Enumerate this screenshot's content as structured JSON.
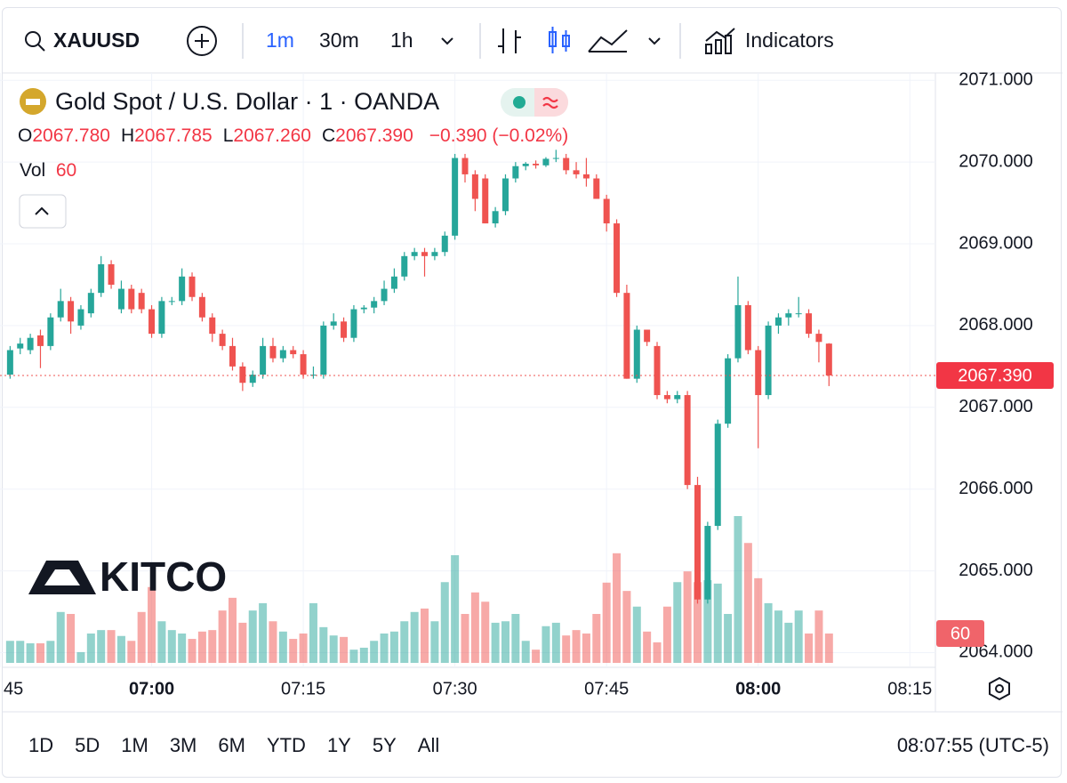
{
  "toolbar": {
    "symbol": "XAUUSD",
    "intervals": [
      "1m",
      "30m",
      "1h"
    ],
    "indicators": "Indicators"
  },
  "legend": {
    "title": "Gold Spot / U.S. Dollar · 1 · OANDA",
    "ohlc": [
      {
        "key": "O",
        "value": "2067.780"
      },
      {
        "key": "H",
        "value": "2067.785"
      },
      {
        "key": "L",
        "value": "2067.260"
      },
      {
        "key": "C",
        "value": "2067.390"
      }
    ],
    "change": "−0.390 (−0.02%)",
    "volume_label": "Vol",
    "volume_value": "60"
  },
  "watermark": "KITCO",
  "chart_data": {
    "type": "candlestick",
    "x": [
      "06:46",
      "06:47",
      "06:48",
      "06:49",
      "06:50",
      "06:51",
      "06:52",
      "06:53",
      "06:54",
      "06:55",
      "06:56",
      "06:57",
      "06:58",
      "06:59",
      "07:00",
      "07:01",
      "07:02",
      "07:03",
      "07:04",
      "07:05",
      "07:06",
      "07:07",
      "07:08",
      "07:09",
      "07:10",
      "07:11",
      "07:12",
      "07:13",
      "07:14",
      "07:15",
      "07:16",
      "07:17",
      "07:18",
      "07:19",
      "07:20",
      "07:21",
      "07:22",
      "07:23",
      "07:24",
      "07:25",
      "07:26",
      "07:27",
      "07:28",
      "07:29",
      "07:30",
      "07:31",
      "07:32",
      "07:33",
      "07:34",
      "07:35",
      "07:36",
      "07:37",
      "07:38",
      "07:39",
      "07:40",
      "07:41",
      "07:42",
      "07:43",
      "07:44",
      "07:45",
      "07:46",
      "07:47",
      "07:48",
      "07:49",
      "07:50",
      "07:51",
      "07:52",
      "07:53",
      "07:54",
      "07:55",
      "07:56",
      "07:57",
      "07:58",
      "07:59",
      "08:00",
      "08:01",
      "08:02",
      "08:03",
      "08:04",
      "08:05",
      "08:06",
      "08:07"
    ],
    "open": [
      2067.4,
      2067.72,
      2067.7,
      2067.88,
      2067.75,
      2068.1,
      2068.3,
      2068.0,
      2068.15,
      2068.4,
      2068.75,
      2068.2,
      2068.45,
      2068.4,
      2068.2,
      2067.9,
      2068.3,
      2068.3,
      2068.6,
      2068.35,
      2068.1,
      2067.9,
      2067.75,
      2067.5,
      2067.3,
      2067.4,
      2067.75,
      2067.6,
      2067.7,
      2067.65,
      2067.4,
      2067.4,
      2068.0,
      2068.05,
      2067.85,
      2068.2,
      2068.22,
      2068.3,
      2068.45,
      2068.6,
      2068.85,
      2068.9,
      2068.85,
      2068.9,
      2069.1,
      2070.05,
      2069.85,
      2069.8,
      2069.25,
      2069.4,
      2069.8,
      2069.95,
      2069.98,
      2069.96,
      2070.04,
      2070.05,
      2069.9,
      2069.85,
      2069.8,
      2069.55,
      2069.25,
      2068.4,
      2067.35,
      2067.95,
      2067.75,
      2067.15,
      2067.1,
      2067.15,
      2066.05,
      2064.65,
      2065.55,
      2066.8,
      2067.6,
      2068.25,
      2067.7,
      2067.15,
      2068.0,
      2068.1,
      2068.15,
      2068.15,
      2067.9,
      2067.78
    ],
    "high": [
      2067.75,
      2067.85,
      2067.9,
      2067.95,
      2068.15,
      2068.45,
      2068.35,
      2068.25,
      2068.45,
      2068.85,
      2068.8,
      2068.55,
      2068.5,
      2068.45,
      2068.25,
      2068.35,
      2068.35,
      2068.7,
      2068.65,
      2068.4,
      2068.15,
      2067.95,
      2067.85,
      2067.55,
      2067.45,
      2067.85,
      2067.85,
      2067.75,
      2067.75,
      2067.7,
      2067.5,
      2068.05,
      2068.15,
      2068.1,
      2068.25,
      2068.25,
      2068.35,
      2068.55,
      2068.7,
      2068.9,
      2068.95,
      2068.95,
      2068.95,
      2069.15,
      2070.1,
      2070.1,
      2069.9,
      2069.85,
      2069.45,
      2069.85,
      2070.0,
      2070.0,
      2070.02,
      2070.06,
      2070.15,
      2070.1,
      2070.0,
      2070.05,
      2069.85,
      2069.6,
      2069.3,
      2068.5,
      2068.0,
      2067.95,
      2067.8,
      2067.2,
      2067.2,
      2067.2,
      2066.15,
      2065.6,
      2066.85,
      2067.65,
      2068.6,
      2068.3,
      2067.75,
      2068.05,
      2068.15,
      2068.2,
      2068.35,
      2068.2,
      2067.95,
      2067.785
    ],
    "low": [
      2067.35,
      2067.65,
      2067.65,
      2067.48,
      2067.7,
      2068.05,
      2067.9,
      2067.95,
      2068.1,
      2068.35,
      2068.45,
      2068.15,
      2068.15,
      2068.15,
      2067.85,
      2067.85,
      2068.25,
      2068.25,
      2068.3,
      2068.05,
      2067.8,
      2067.7,
      2067.45,
      2067.2,
      2067.25,
      2067.35,
      2067.55,
      2067.55,
      2067.6,
      2067.35,
      2067.35,
      2067.35,
      2067.95,
      2067.8,
      2067.8,
      2068.15,
      2068.15,
      2068.25,
      2068.4,
      2068.55,
      2068.8,
      2068.6,
      2068.8,
      2068.85,
      2069.05,
      2069.75,
      2069.4,
      2069.25,
      2069.2,
      2069.35,
      2069.75,
      2069.9,
      2069.92,
      2069.94,
      2070.0,
      2069.85,
      2069.8,
      2069.7,
      2069.55,
      2069.15,
      2068.35,
      2067.35,
      2067.3,
      2067.75,
      2067.1,
      2067.05,
      2067.05,
      2066.0,
      2064.6,
      2064.6,
      2065.5,
      2066.75,
      2067.55,
      2067.65,
      2066.5,
      2067.1,
      2067.9,
      2068.0,
      2068.1,
      2067.85,
      2067.55,
      2067.26
    ],
    "close": [
      2067.7,
      2067.78,
      2067.85,
      2067.75,
      2068.1,
      2068.3,
      2068.05,
      2068.2,
      2068.4,
      2068.75,
      2068.5,
      2068.45,
      2068.2,
      2068.2,
      2067.9,
      2068.3,
      2068.3,
      2068.6,
      2068.35,
      2068.1,
      2067.9,
      2067.75,
      2067.5,
      2067.3,
      2067.4,
      2067.75,
      2067.6,
      2067.7,
      2067.65,
      2067.4,
      2067.4,
      2068.0,
      2068.05,
      2067.85,
      2068.2,
      2068.22,
      2068.3,
      2068.45,
      2068.6,
      2068.85,
      2068.9,
      2068.85,
      2068.9,
      2069.1,
      2070.05,
      2069.85,
      2069.55,
      2069.25,
      2069.4,
      2069.8,
      2069.95,
      2069.98,
      2069.96,
      2070.04,
      2070.05,
      2069.9,
      2069.85,
      2069.8,
      2069.55,
      2069.25,
      2068.4,
      2067.35,
      2067.95,
      2067.8,
      2067.15,
      2067.1,
      2067.15,
      2066.05,
      2064.65,
      2065.55,
      2066.8,
      2067.6,
      2068.25,
      2067.7,
      2067.15,
      2068.0,
      2068.1,
      2068.15,
      2068.15,
      2067.9,
      2067.8,
      2067.39
    ],
    "volume": [
      45,
      45,
      40,
      40,
      45,
      104,
      100,
      22,
      60,
      67,
      67,
      55,
      45,
      104,
      155,
      85,
      67,
      60,
      49,
      64,
      67,
      107,
      133,
      82,
      107,
      122,
      85,
      64,
      49,
      60,
      122,
      73,
      56,
      53,
      27,
      31,
      45,
      60,
      64,
      85,
      104,
      111,
      85,
      165,
      220,
      100,
      144,
      125,
      82,
      85,
      100,
      45,
      27,
      75,
      82,
      56,
      67,
      60,
      100,
      164,
      224,
      147,
      115,
      64,
      42,
      115,
      165,
      187,
      165,
      169,
      162,
      100,
      300,
      245,
      173,
      122,
      107,
      82,
      107,
      60,
      107,
      60
    ],
    "up_color": "#26a69a",
    "down_color": "#ef5350",
    "ylim": [
      2063.82,
      2071.09
    ],
    "yticks": [
      {
        "value": 2064,
        "label": "2064.000"
      },
      {
        "value": 2065,
        "label": "2065.000"
      },
      {
        "value": 2066,
        "label": "2066.000"
      },
      {
        "value": 2067,
        "label": "2067.000"
      },
      {
        "value": 2068,
        "label": "2068.000"
      },
      {
        "value": 2069,
        "label": "2069.000"
      },
      {
        "value": 2070,
        "label": "2070.000"
      },
      {
        "value": 2071,
        "label": "2071.000"
      }
    ],
    "xlim": [
      "06:45",
      "08:17"
    ],
    "xticks": [
      {
        "value": "06:45",
        "label": "45"
      },
      "07:00",
      "07:15",
      "07:30",
      "07:45",
      "08:00",
      "08:15"
    ],
    "volume_ylim": [
      0,
      400
    ],
    "grid": true,
    "last_price": {
      "value": 2067.39,
      "label": "2067.390"
    },
    "last_volume": 60
  },
  "footer": {
    "ranges": [
      "1D",
      "5D",
      "1M",
      "3M",
      "6M",
      "YTD",
      "1Y",
      "5Y",
      "All"
    ],
    "clock": "08:07:55 (UTC-5)"
  }
}
